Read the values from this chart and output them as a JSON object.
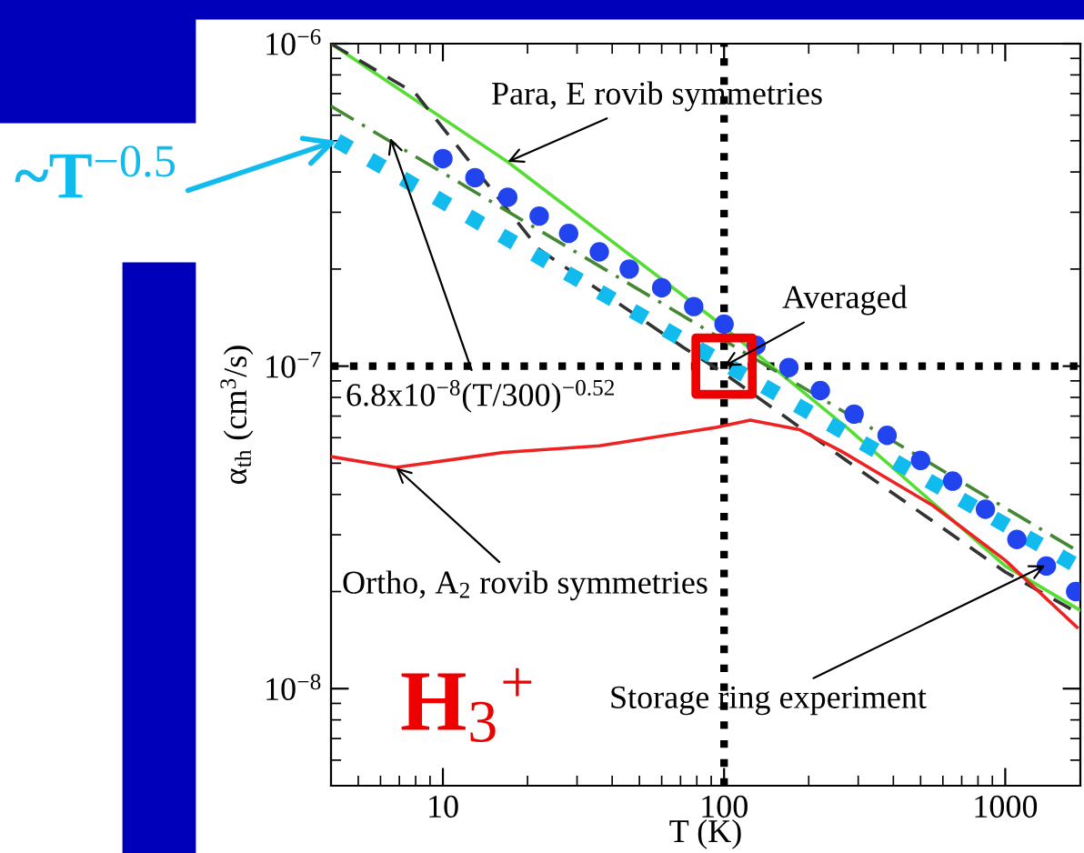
{
  "chart_data": {
    "type": "line",
    "xlabel": "T (K)",
    "ylabel": "α$_{th}$ (cm$^{3}$/s)",
    "log": "xy",
    "grid": false,
    "xlim": [
      4,
      1850
    ],
    "ylim": [
      5e-09,
      1e-06
    ],
    "xticks": [
      10,
      100,
      1000
    ],
    "yticks": [
      {
        "value": 1e-08,
        "label": "10$^{−8}$"
      },
      {
        "value": 1e-07,
        "label": "10$^{−7}$"
      },
      {
        "value": 1e-06,
        "label": "10$^{−6}$"
      }
    ],
    "series": [
      {
        "color": "#55dd33",
        "line_style": "solid",
        "x": [
          4,
          17,
          92,
          276,
          1000,
          1850
        ],
        "values": [
          1e-06,
          4.3e-07,
          1.4e-07,
          6.4e-08,
          2.4e-08,
          1.75e-08
        ]
      },
      {
        "color": "#333333",
        "line_style": "dashed",
        "x": [
          4,
          8,
          22,
          72,
          100,
          300,
          1000,
          1850
        ],
        "values": [
          1e-06,
          7e-07,
          2.3e-07,
          1.14e-07,
          9.5e-08,
          4.8e-08,
          2.3e-08,
          1.7e-08
        ]
      },
      {
        "color": "#448833",
        "line_style": "dashdot",
        "x": [
          4,
          1850
        ],
        "values": [
          6.4e-07,
          2.64e-08
        ]
      },
      {
        "color": "#ee2222",
        "line_style": "solid",
        "x": [
          4,
          6.8,
          16.4,
          36,
          92,
          124,
          186,
          261,
          552,
          1000,
          1800
        ],
        "values": [
          5.24e-08,
          4.85e-08,
          5.4e-08,
          5.66e-08,
          6.44e-08,
          6.8e-08,
          6.35e-08,
          5.45e-08,
          3.7e-08,
          2.5e-08,
          1.55e-08
        ]
      },
      {
        "type": "scatter",
        "color": "#2244ee",
        "marker": "circle",
        "x": [
          10,
          13,
          17,
          22,
          28,
          36,
          46,
          60,
          78,
          100,
          130,
          170,
          220,
          290,
          380,
          500,
          650,
          850,
          1100,
          1400,
          1780
        ],
        "values": [
          4.4e-07,
          3.84e-07,
          3.34e-07,
          2.92e-07,
          2.58e-07,
          2.26e-07,
          2e-07,
          1.75e-07,
          1.53e-07,
          1.35e-07,
          1.16e-07,
          9.9e-08,
          8.4e-08,
          7.1e-08,
          6.1e-08,
          5.1e-08,
          4.4e-08,
          3.6e-08,
          2.9e-08,
          2.4e-08,
          2e-08
        ]
      },
      {
        "color": "#11bbee",
        "line_style": "dotted",
        "x": [
          4.2,
          100,
          1800
        ],
        "values": [
          5e-07,
          1.02e-07,
          2.4e-08
        ]
      }
    ],
    "ref_lines": [
      {
        "axis": "x",
        "value": 100,
        "color": "#000000",
        "line_style": "dotted"
      },
      {
        "axis": "y",
        "value": 1e-07,
        "color": "#000000",
        "line_style": "dotted"
      }
    ],
    "annotations": [
      {
        "text": "Para, E rovib symmetries",
        "x": 17,
        "y": 4.3e-07
      },
      {
        "text": "Averaged",
        "x": 100,
        "y": 1e-07
      },
      {
        "text": "6.8x10$^{−8}$(T/300)$^{−0.52}$",
        "x": 6.5,
        "y": 5.1e-07
      },
      {
        "text": "Ortho, A$_{2}$ rovib symmetries",
        "x": 6.8,
        "y": 4.85e-08
      },
      {
        "text": "Storage ring experiment",
        "x": 1387,
        "y": 2.41e-08
      },
      {
        "text": "~T$^{−0.5}$",
        "x": 4.2,
        "y": 5e-07
      },
      "H$_{3}$$^{+}$"
    ]
  }
}
